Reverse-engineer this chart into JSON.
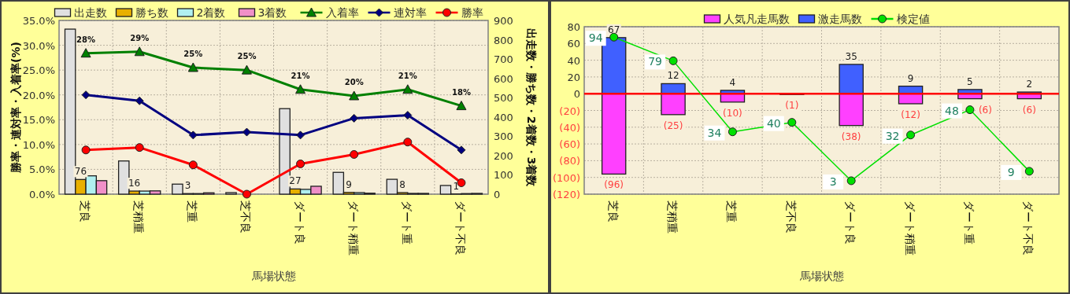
{
  "chart_data": [
    {
      "type": "bar",
      "xlabel": "馬場状態",
      "ylabel": "勝率・連対率・入着率(%)",
      "y2label": "出走数・勝ち数・2着数・3着数",
      "categories": [
        "芝良",
        "芝稍重",
        "芝重",
        "芝不良",
        "ダート良",
        "ダート稍重",
        "ダート重",
        "ダート不良"
      ],
      "ylim": [
        0,
        35
      ],
      "yticks": [
        {
          "value": 0,
          "label": "0.0%"
        },
        {
          "value": 5,
          "label": "5.0%"
        },
        {
          "value": 10,
          "label": "10.0%"
        },
        {
          "value": 15,
          "label": "15.0%"
        },
        {
          "value": 20,
          "label": "20.0%"
        },
        {
          "value": 25,
          "label": "25.0%"
        },
        {
          "value": 30,
          "label": "30.0%"
        },
        {
          "value": 35,
          "label": "35.0%"
        }
      ],
      "y2lim": [
        0,
        900
      ],
      "y2ticks": [
        0,
        100,
        200,
        300,
        400,
        500,
        600,
        700,
        800,
        900
      ],
      "grid": true,
      "legend": "top",
      "series": [
        {
          "name": "出走数",
          "axis": "y2",
          "color": "#e0e0e0",
          "values": [
            855,
            172,
            52,
            8,
            443,
            113,
            77,
            45
          ]
        },
        {
          "name": "勝ち数",
          "axis": "y2",
          "color": "#e8b000",
          "values": [
            76,
            16,
            3,
            0,
            27,
            9,
            8,
            1
          ],
          "value_labels": [
            "76",
            "16",
            "3",
            null,
            "27",
            "9",
            "8",
            "1"
          ]
        },
        {
          "name": "2着数",
          "axis": "y2",
          "color": "#b0f0f0",
          "values": [
            95,
            16,
            3,
            null,
            25,
            8,
            4,
            3
          ]
        },
        {
          "name": "3着数",
          "axis": "y2",
          "color": "#f090c8",
          "values": [
            70,
            17,
            7,
            null,
            41,
            5,
            4,
            4
          ]
        },
        {
          "name": "入着率",
          "type": "line",
          "marker": "triangle",
          "color": "#008000",
          "values": [
            28.4,
            28.7,
            25.5,
            25.0,
            21.1,
            19.8,
            21.1,
            17.8
          ],
          "value_labels": [
            "28%",
            "29%",
            "25%",
            "25%",
            "21%",
            "20%",
            "21%",
            "18%"
          ]
        },
        {
          "name": "連対率",
          "type": "line",
          "marker": "diamond",
          "color": "#000080",
          "values": [
            20.0,
            18.8,
            11.9,
            12.5,
            11.9,
            15.3,
            15.9,
            8.9
          ]
        },
        {
          "name": "勝率",
          "type": "line",
          "marker": "circle",
          "color": "#ff0000",
          "values": [
            8.9,
            9.4,
            5.9,
            0,
            6.1,
            8.0,
            10.5,
            2.3
          ]
        }
      ]
    },
    {
      "type": "bar",
      "stacked": true,
      "xlabel": "馬場状態",
      "categories": [
        "芝良",
        "芝稍重",
        "芝重",
        "芝不良",
        "ダート良",
        "ダート稍重",
        "ダート重",
        "ダート不良"
      ],
      "ylim": [
        -120,
        80
      ],
      "yticks": [
        {
          "value": -120,
          "label": "(120)"
        },
        {
          "value": -100,
          "label": "(100)"
        },
        {
          "value": -80,
          "label": "(80)"
        },
        {
          "value": -60,
          "label": "(60)"
        },
        {
          "value": -40,
          "label": "(40)"
        },
        {
          "value": -20,
          "label": "(20)"
        },
        0,
        20,
        40,
        60,
        80
      ],
      "y2lim": [
        -5.5,
        100.6
      ],
      "grid": true,
      "legend": "top",
      "ref_lines": [
        {
          "axis": "y",
          "value": 0,
          "color": "#ff0000"
        }
      ],
      "series": [
        {
          "name": "人気凡走馬数",
          "color": "#ff40ff",
          "values": [
            -96,
            -25,
            -10,
            -1,
            -38,
            -12,
            -6,
            -6
          ],
          "value_labels": [
            "(96)",
            "(25)",
            "(10)",
            "(1)",
            "(38)",
            "(12)",
            "(6)",
            "(6)"
          ]
        },
        {
          "name": "激走馬数",
          "color": "#4060ff",
          "values": [
            67,
            12,
            4,
            0,
            35,
            9,
            5,
            2
          ],
          "value_labels": [
            "67",
            "12",
            "4",
            null,
            "35",
            "9",
            "5",
            "2"
          ]
        },
        {
          "name": "検定値",
          "type": "line",
          "axis": "y2",
          "marker": "circle",
          "color": "#00e000",
          "values": [
            94,
            79,
            34,
            40,
            3,
            32,
            48,
            9
          ],
          "value_labels": [
            "94",
            "79",
            "34",
            "40",
            "3",
            "32",
            "48",
            "9"
          ]
        }
      ]
    }
  ]
}
